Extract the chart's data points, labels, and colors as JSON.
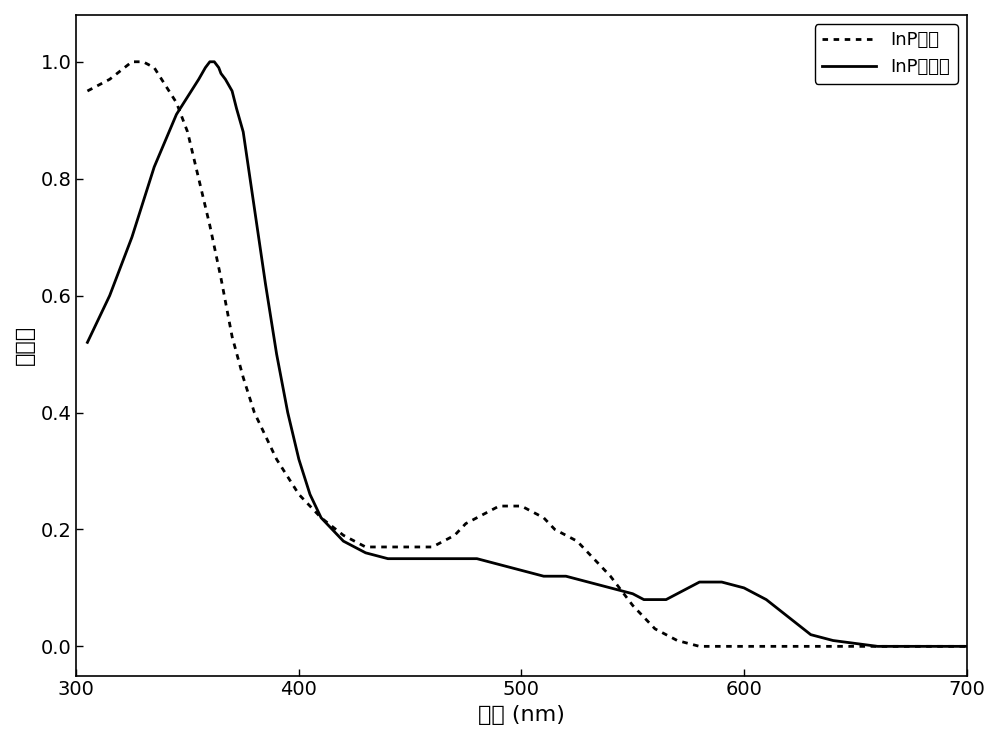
{
  "title": "",
  "xlabel": "波长 (nm)",
  "ylabel": "吸光度",
  "xlim": [
    300,
    700
  ],
  "ylim": [
    -0.05,
    1.08
  ],
  "xticks": [
    300,
    400,
    500,
    600,
    700
  ],
  "yticks": [
    0.0,
    0.2,
    0.4,
    0.6,
    0.8,
    1.0
  ],
  "background_color": "#ffffff",
  "legend1_label": "InP晶种",
  "legend2_label": "InP量子点",
  "seed_x": [
    305,
    315,
    325,
    330,
    335,
    340,
    345,
    350,
    355,
    360,
    365,
    370,
    375,
    380,
    385,
    390,
    395,
    400,
    410,
    420,
    430,
    440,
    450,
    460,
    465,
    470,
    475,
    480,
    485,
    490,
    495,
    500,
    505,
    510,
    515,
    520,
    525,
    530,
    535,
    540,
    550,
    560,
    570,
    580,
    590,
    600,
    620,
    640,
    660,
    680,
    700
  ],
  "seed_y": [
    0.95,
    0.97,
    1.0,
    1.0,
    0.99,
    0.96,
    0.93,
    0.88,
    0.8,
    0.72,
    0.63,
    0.53,
    0.46,
    0.4,
    0.36,
    0.32,
    0.29,
    0.26,
    0.22,
    0.19,
    0.17,
    0.17,
    0.17,
    0.17,
    0.18,
    0.19,
    0.21,
    0.22,
    0.23,
    0.24,
    0.24,
    0.24,
    0.23,
    0.22,
    0.2,
    0.19,
    0.18,
    0.16,
    0.14,
    0.12,
    0.07,
    0.03,
    0.01,
    0.0,
    0.0,
    0.0,
    0.0,
    0.0,
    0.0,
    0.0,
    0.0
  ],
  "qd_x": [
    305,
    315,
    325,
    335,
    345,
    350,
    355,
    358,
    360,
    362,
    364,
    365,
    367,
    370,
    372,
    375,
    380,
    385,
    390,
    395,
    400,
    405,
    410,
    420,
    430,
    440,
    450,
    460,
    470,
    480,
    490,
    500,
    510,
    520,
    530,
    540,
    550,
    555,
    560,
    565,
    570,
    575,
    580,
    590,
    600,
    610,
    620,
    630,
    640,
    660,
    680,
    700
  ],
  "qd_y": [
    0.52,
    0.6,
    0.7,
    0.82,
    0.91,
    0.94,
    0.97,
    0.99,
    1.0,
    1.0,
    0.99,
    0.98,
    0.97,
    0.95,
    0.92,
    0.88,
    0.75,
    0.62,
    0.5,
    0.4,
    0.32,
    0.26,
    0.22,
    0.18,
    0.16,
    0.15,
    0.15,
    0.15,
    0.15,
    0.15,
    0.14,
    0.13,
    0.12,
    0.12,
    0.11,
    0.1,
    0.09,
    0.08,
    0.08,
    0.08,
    0.09,
    0.1,
    0.11,
    0.11,
    0.1,
    0.08,
    0.05,
    0.02,
    0.01,
    0.0,
    0.0,
    0.0
  ]
}
